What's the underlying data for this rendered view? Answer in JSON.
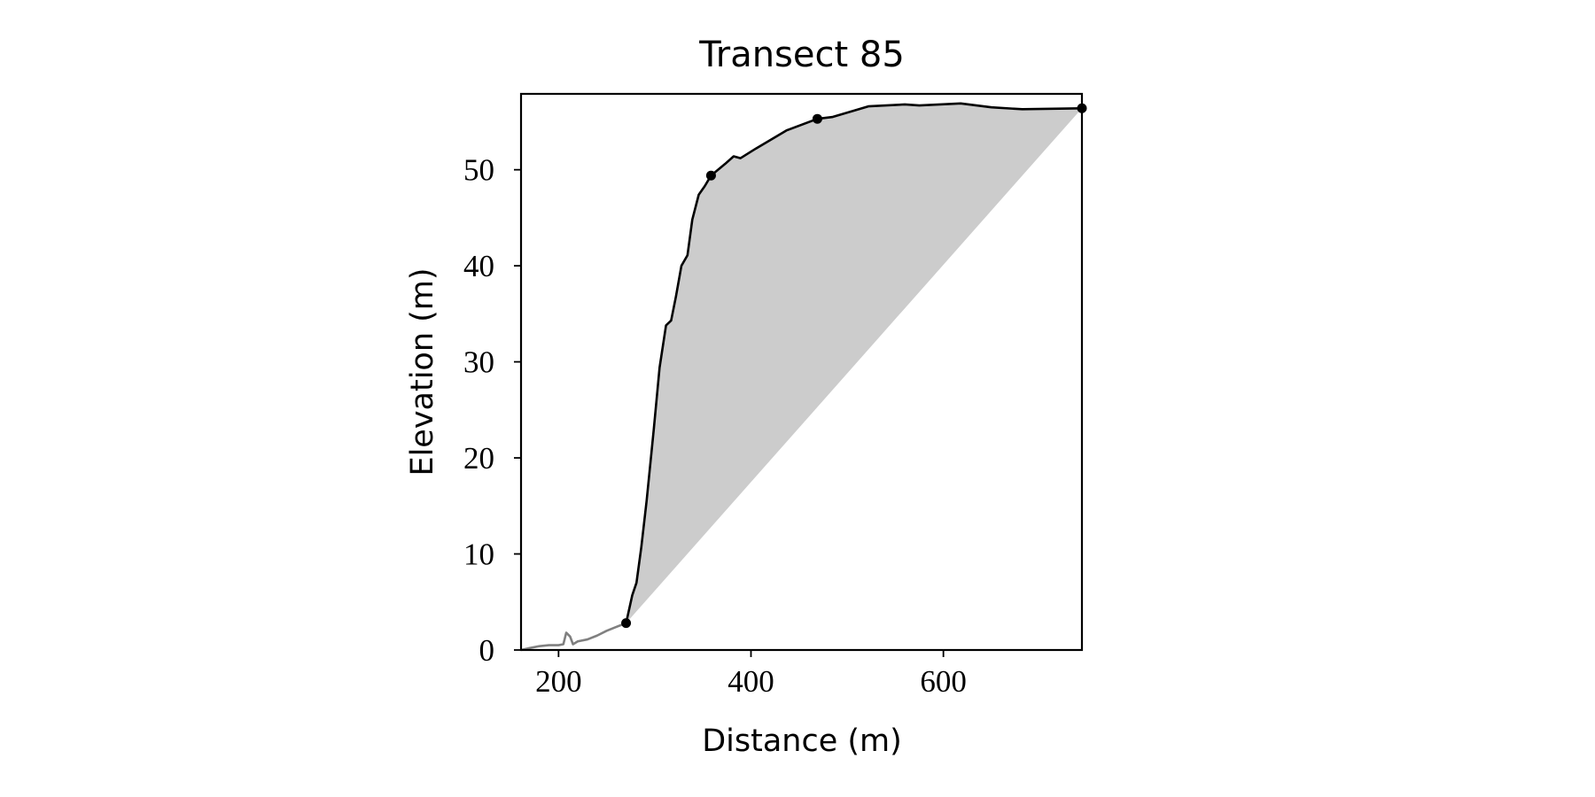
{
  "chart_data": {
    "type": "line",
    "title": "Transect 85",
    "x_label": "Distance (m)",
    "y_label": "Elevation (m)",
    "series": [
      {
        "color": "#808080",
        "x": [
          161,
          170,
          180,
          190,
          200,
          205,
          208,
          212,
          215,
          220,
          230,
          240,
          250,
          260,
          270.2
        ],
        "values": [
          0,
          0.2,
          0.4,
          0.5,
          0.5,
          0.6,
          1.8,
          1.4,
          0.6,
          0.9,
          1.1,
          1.5,
          2.0,
          2.4,
          2.8
        ]
      },
      {
        "color": "#000000",
        "x": [
          270.2,
          276.6,
          281,
          286,
          291.5,
          299,
          305,
          311.7,
          317,
          322,
          327.7,
          334,
          339,
          345.7,
          352,
          358.5,
          373,
          382,
          389,
          405,
          437,
          469,
          485,
          522,
          560,
          575,
          618,
          650,
          682,
          744
        ],
        "values": [
          2.8,
          5.7,
          7.0,
          10.7,
          15.5,
          23,
          29.4,
          33.8,
          34.3,
          36.8,
          40,
          41.1,
          44.8,
          47.4,
          48.3,
          49.4,
          50.6,
          51.4,
          51.2,
          52.2,
          54.1,
          55.3,
          55.5,
          56.6,
          56.8,
          56.7,
          56.9,
          56.5,
          56.3,
          56.4
        ]
      }
    ],
    "markers": {
      "color": "#000000",
      "x": [
        270.2,
        358.5,
        469,
        744
      ],
      "values": [
        2.8,
        49.4,
        55.3,
        56.4
      ]
    },
    "fill_color": "#cccccc",
    "xlim": [
      161,
      744
    ],
    "ylim": [
      0,
      57.9
    ],
    "xticks": [
      200,
      400,
      600
    ],
    "yticks": [
      0,
      10,
      20,
      30,
      40,
      50
    ]
  }
}
